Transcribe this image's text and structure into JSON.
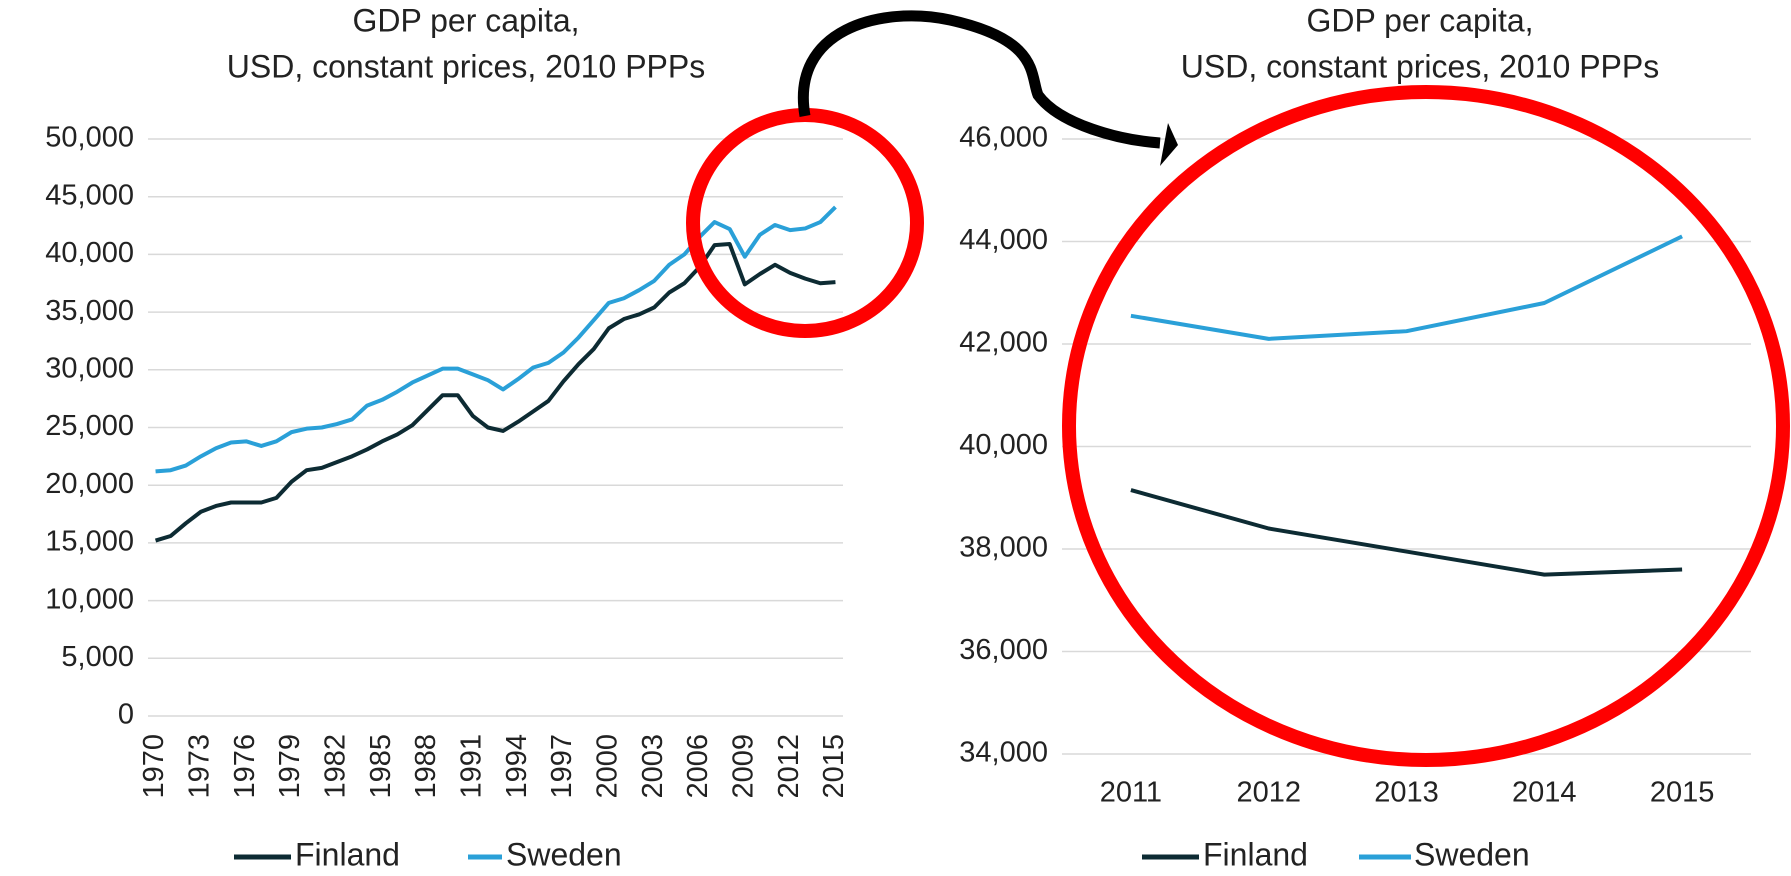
{
  "chart_data": [
    {
      "type": "line",
      "title": "GDP per capita,",
      "subtitle": "USD, constant prices, 2010 PPPs",
      "categories": [
        "1970",
        null,
        null,
        "1973",
        null,
        null,
        "1976",
        null,
        null,
        "1979",
        null,
        null,
        "1982",
        null,
        null,
        "1985",
        null,
        null,
        "1988",
        null,
        null,
        "1991",
        null,
        null,
        "1994",
        null,
        null,
        "1997",
        null,
        null,
        "2000",
        null,
        null,
        "2003",
        null,
        null,
        "2006",
        null,
        null,
        "2009",
        null,
        null,
        "2012",
        null,
        null,
        "2015"
      ],
      "series": [
        {
          "name": "Finland",
          "color": "#0d2b33",
          "values": [
            15200,
            15600,
            16700,
            17700,
            18200,
            18500,
            18500,
            18500,
            18900,
            20300,
            21300,
            21500,
            22000,
            22500,
            23100,
            23800,
            24400,
            25200,
            26500,
            27800,
            27800,
            26000,
            25000,
            24700,
            25500,
            26400,
            27300,
            29000,
            30500,
            31800,
            33600,
            34400,
            34800,
            35400,
            36700,
            37500,
            38900,
            40800,
            40900,
            37400,
            38300,
            39100,
            38400,
            37900,
            37500,
            37600
          ]
        },
        {
          "name": "Sweden",
          "color": "#2aa0d8",
          "values": [
            21200,
            21300,
            21700,
            22500,
            23200,
            23700,
            23800,
            23400,
            23800,
            24600,
            24900,
            25000,
            25300,
            25700,
            26900,
            27400,
            28100,
            28900,
            29500,
            30100,
            30100,
            29600,
            29100,
            28300,
            29200,
            30200,
            30600,
            31500,
            32800,
            34300,
            35800,
            36200,
            36900,
            37700,
            39100,
            40000,
            41500,
            42800,
            42200,
            39800,
            41700,
            42550,
            42100,
            42250,
            42800,
            44100
          ]
        }
      ],
      "ylim": [
        0,
        50000
      ],
      "yticks": [
        0,
        {
          "value": 5000,
          "label": "5,000"
        },
        {
          "value": 10000,
          "label": "10,000"
        },
        {
          "value": 15000,
          "label": "15,000"
        },
        {
          "value": 20000,
          "label": "20,000"
        },
        {
          "value": 25000,
          "label": "25,000"
        },
        {
          "value": 30000,
          "label": "30,000"
        },
        {
          "value": 35000,
          "label": "35,000"
        },
        {
          "value": 40000,
          "label": "40,000"
        },
        {
          "value": 45000,
          "label": "45,000"
        },
        {
          "value": 50000,
          "label": "50,000"
        }
      ],
      "grid": true,
      "legend": "bottom"
    },
    {
      "type": "line",
      "title": "GDP per capita,",
      "subtitle": "USD, constant prices, 2010 PPPs",
      "categories": [
        "2011",
        "2012",
        "2013",
        "2014",
        "2015"
      ],
      "series": [
        {
          "name": "Finland",
          "color": "#0d2b33",
          "values": [
            39150,
            38400,
            37950,
            37500,
            37600
          ]
        },
        {
          "name": "Sweden",
          "color": "#2aa0d8",
          "values": [
            42550,
            42100,
            42250,
            42800,
            44100
          ]
        }
      ],
      "ylim": [
        34000,
        46000
      ],
      "yticks": [
        {
          "value": 34000,
          "label": "34,000"
        },
        {
          "value": 36000,
          "label": "36,000"
        },
        {
          "value": 38000,
          "label": "38,000"
        },
        {
          "value": 40000,
          "label": "40,000"
        },
        {
          "value": 42000,
          "label": "42,000"
        },
        {
          "value": 44000,
          "label": "44,000"
        },
        {
          "value": 46000,
          "label": "46,000"
        }
      ],
      "grid": true,
      "legend": "bottom"
    }
  ]
}
